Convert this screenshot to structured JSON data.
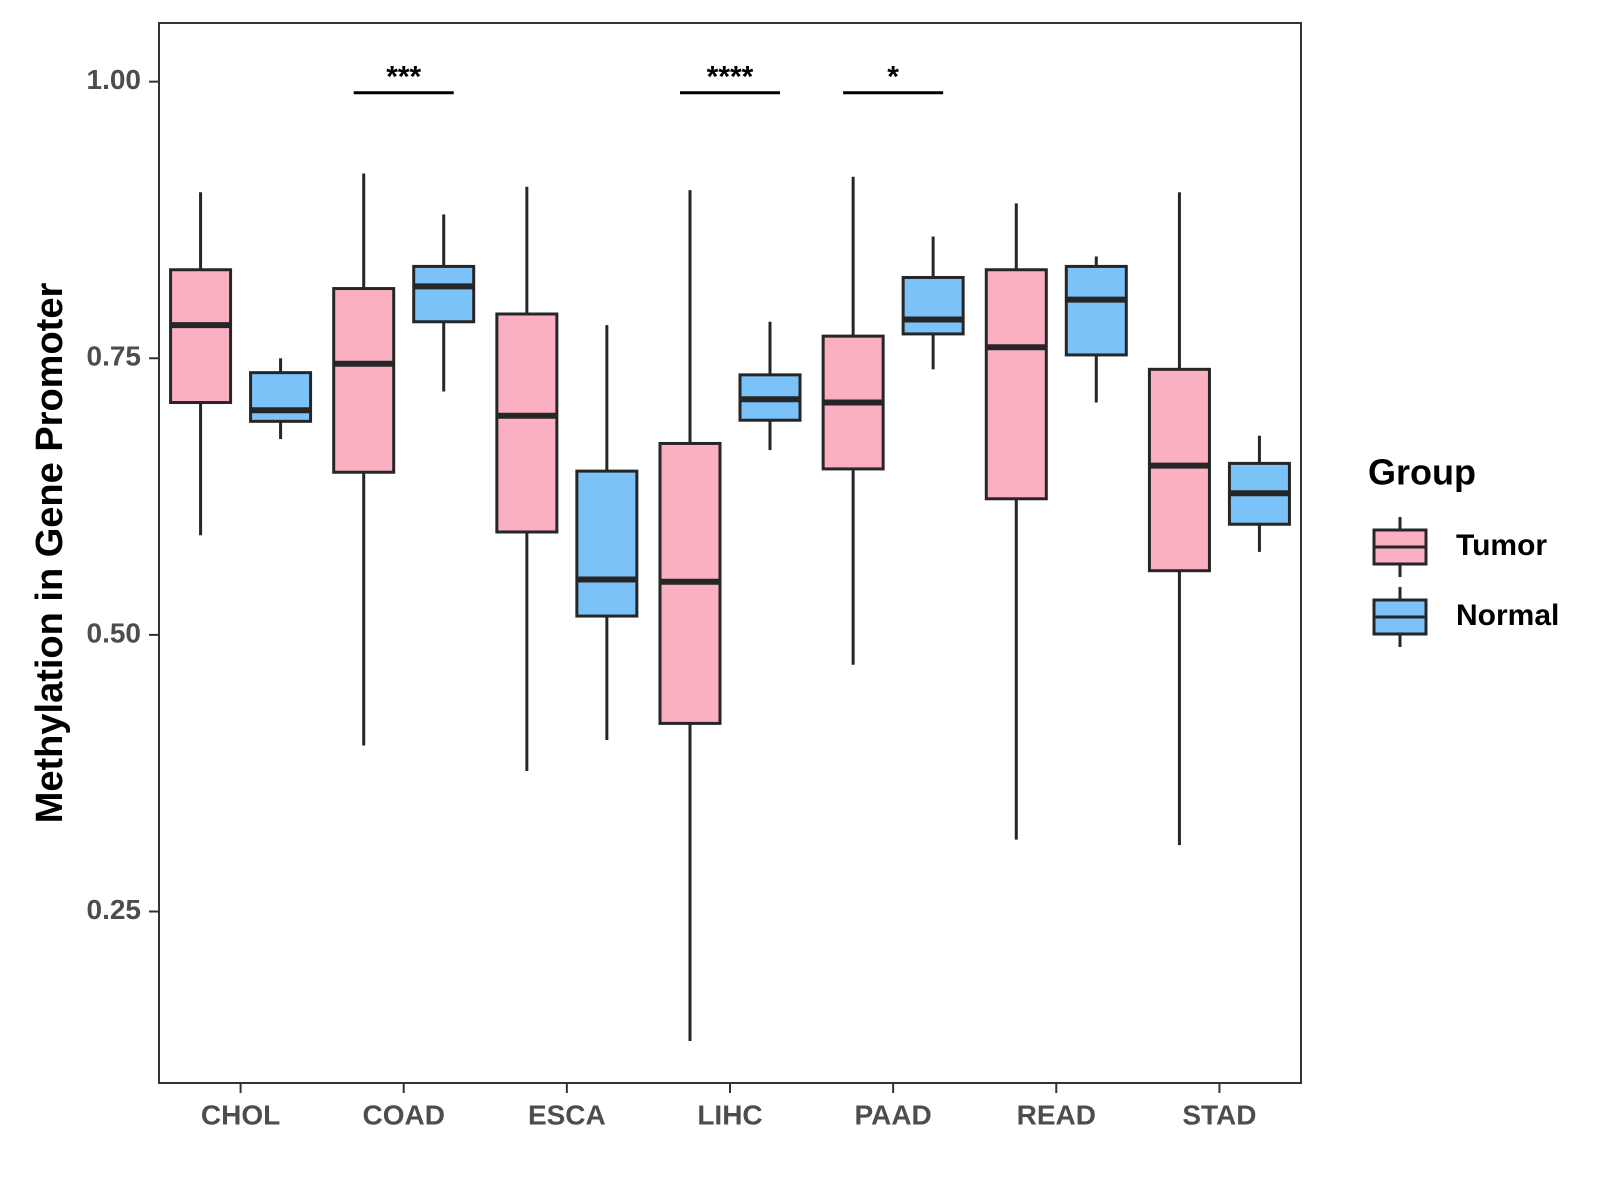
{
  "chart_data": {
    "type": "box",
    "title": "",
    "xlabel": "",
    "ylabel": "Methylation in Gene Promoter",
    "ylim": [
      0.095,
      1.053
    ],
    "y_ticks": [
      0.25,
      0.5,
      0.75,
      1.0
    ],
    "y_tick_labels": [
      "0.25",
      "0.50",
      "0.75",
      "1.00"
    ],
    "categories": [
      "CHOL",
      "COAD",
      "ESCA",
      "LIHC",
      "PAAD",
      "READ",
      "STAD"
    ],
    "legend": {
      "title": "Group",
      "position": "right",
      "entries": [
        {
          "name": "Tumor",
          "color": "#fbb0c2"
        },
        {
          "name": "Normal",
          "color": "#7bc2f8"
        }
      ]
    },
    "series": [
      {
        "name": "Tumor",
        "color": "#fbb0c2",
        "boxes": [
          {
            "category": "CHOL",
            "min": 0.59,
            "q1": 0.71,
            "median": 0.78,
            "q3": 0.83,
            "max": 0.9
          },
          {
            "category": "COAD",
            "min": 0.4,
            "q1": 0.647,
            "median": 0.745,
            "q3": 0.813,
            "max": 0.917
          },
          {
            "category": "ESCA",
            "min": 0.377,
            "q1": 0.593,
            "median": 0.698,
            "q3": 0.79,
            "max": 0.905
          },
          {
            "category": "LIHC",
            "min": 0.133,
            "q1": 0.42,
            "median": 0.548,
            "q3": 0.673,
            "max": 0.902
          },
          {
            "category": "PAAD",
            "min": 0.473,
            "q1": 0.65,
            "median": 0.71,
            "q3": 0.77,
            "max": 0.914
          },
          {
            "category": "READ",
            "min": 0.315,
            "q1": 0.623,
            "median": 0.76,
            "q3": 0.83,
            "max": 0.89
          },
          {
            "category": "STAD",
            "min": 0.31,
            "q1": 0.558,
            "median": 0.653,
            "q3": 0.74,
            "max": 0.9
          }
        ]
      },
      {
        "name": "Normal",
        "color": "#7bc2f8",
        "boxes": [
          {
            "category": "CHOL",
            "min": 0.677,
            "q1": 0.693,
            "median": 0.703,
            "q3": 0.737,
            "max": 0.75
          },
          {
            "category": "COAD",
            "min": 0.72,
            "q1": 0.783,
            "median": 0.815,
            "q3": 0.833,
            "max": 0.88
          },
          {
            "category": "ESCA",
            "min": 0.405,
            "q1": 0.517,
            "median": 0.55,
            "q3": 0.648,
            "max": 0.78
          },
          {
            "category": "LIHC",
            "min": 0.667,
            "q1": 0.694,
            "median": 0.713,
            "q3": 0.735,
            "max": 0.783
          },
          {
            "category": "PAAD",
            "min": 0.74,
            "q1": 0.772,
            "median": 0.785,
            "q3": 0.823,
            "max": 0.86
          },
          {
            "category": "READ",
            "min": 0.71,
            "q1": 0.753,
            "median": 0.803,
            "q3": 0.833,
            "max": 0.842
          },
          {
            "category": "STAD",
            "min": 0.575,
            "q1": 0.6,
            "median": 0.628,
            "q3": 0.655,
            "max": 0.68
          }
        ]
      }
    ],
    "annotations": [
      {
        "category": "COAD",
        "label": "***",
        "y": 0.99
      },
      {
        "category": "LIHC",
        "label": "****",
        "y": 0.99
      },
      {
        "category": "PAAD",
        "label": "*",
        "y": 0.99
      }
    ],
    "grid": false
  }
}
